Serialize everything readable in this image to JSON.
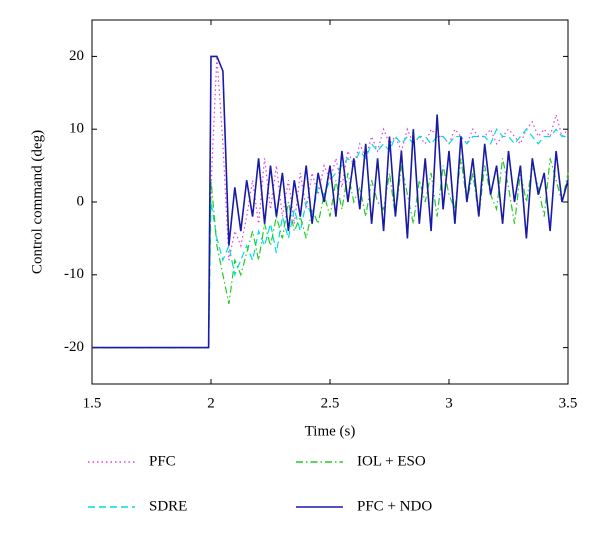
{
  "chart_data": {
    "type": "line",
    "xlabel": "Time (s)",
    "ylabel": "Control command (deg)",
    "xlim": [
      1.5,
      3.5
    ],
    "xticks": [
      1.5,
      2,
      2.5,
      3,
      3.5
    ],
    "ylim": [
      -25,
      25
    ],
    "yticks": [
      -20,
      -10,
      0,
      10,
      20
    ],
    "x": [
      1.5,
      1.99,
      2,
      2.025,
      2.05,
      2.075,
      2.1,
      2.125,
      2.15,
      2.175,
      2.2,
      2.225,
      2.25,
      2.275,
      2.3,
      2.325,
      2.35,
      2.375,
      2.4,
      2.425,
      2.45,
      2.475,
      2.5,
      2.525,
      2.55,
      2.575,
      2.6,
      2.625,
      2.65,
      2.675,
      2.7,
      2.725,
      2.75,
      2.775,
      2.8,
      2.825,
      2.85,
      2.875,
      2.9,
      2.925,
      2.95,
      2.975,
      3,
      3.025,
      3.05,
      3.075,
      3.1,
      3.125,
      3.15,
      3.175,
      3.2,
      3.225,
      3.25,
      3.275,
      3.3,
      3.325,
      3.35,
      3.375,
      3.4,
      3.425,
      3.45,
      3.475,
      3.5
    ],
    "series": [
      {
        "name": "PFC",
        "color": "#e040e0",
        "style": "dotted",
        "values": [
          -20,
          -20,
          2,
          20,
          8,
          -8,
          -4,
          -6,
          -2,
          3,
          -3,
          6,
          -1,
          5,
          -2,
          3,
          -3,
          4,
          -1,
          4,
          1,
          5,
          3,
          6,
          2,
          7,
          5,
          8,
          6,
          9,
          7,
          10,
          8,
          9,
          7,
          10,
          8,
          9,
          8,
          10,
          9,
          9,
          8,
          10,
          9,
          8,
          10,
          9,
          9,
          10,
          8,
          9,
          10,
          9,
          8,
          10,
          11,
          9,
          10,
          9,
          12,
          9,
          10
        ]
      },
      {
        "name": "SDRE",
        "color": "#00dede",
        "style": "dashed",
        "values": [
          -20,
          -20,
          0,
          -5,
          -8,
          -6,
          -10,
          -8,
          -6,
          -8,
          -4,
          -6,
          -3,
          -7,
          -2,
          -5,
          -1,
          -4,
          0,
          -2,
          2,
          1,
          3,
          4,
          5,
          6,
          5,
          7,
          6,
          8,
          7,
          8,
          7,
          9,
          8,
          9,
          8,
          9,
          9,
          8,
          9,
          9,
          8,
          9,
          9,
          8,
          9,
          9,
          9,
          8,
          10,
          9,
          9,
          8,
          9,
          10,
          9,
          8,
          9,
          9,
          10,
          9,
          9
        ]
      },
      {
        "name": "IOL + ESO",
        "color": "#22cc22",
        "style": "dashdot",
        "values": [
          -20,
          -20,
          3,
          -6,
          -10,
          -14,
          -8,
          -10,
          -7,
          -4,
          -8,
          -3,
          -6,
          -2,
          -5,
          0,
          -4,
          -2,
          -5,
          -1,
          -3,
          1,
          -2,
          3,
          -1,
          4,
          0,
          2,
          -2,
          3,
          0,
          -1,
          4,
          -2,
          5,
          1,
          -3,
          3,
          0,
          4,
          -2,
          5,
          1,
          -1,
          6,
          0,
          4,
          -2,
          5,
          1,
          -1,
          6,
          2,
          -3,
          4,
          0,
          5,
          2,
          -2,
          6,
          3,
          0,
          4
        ]
      },
      {
        "name": "PFC + NDO",
        "color": "#1a1aa8",
        "style": "solid",
        "values": [
          -20,
          -20,
          20,
          20,
          18,
          -6,
          2,
          -4,
          3,
          -2,
          6,
          -3,
          5,
          -2,
          4,
          -4,
          3,
          -2,
          5,
          -3,
          4,
          0,
          5,
          -2,
          7,
          0,
          6,
          -1,
          8,
          -3,
          6,
          -4,
          9,
          -2,
          7,
          -5,
          10,
          -3,
          6,
          -4,
          12,
          -1,
          7,
          -3,
          9,
          0,
          6,
          -2,
          8,
          1,
          5,
          -3,
          7,
          0,
          5,
          -5,
          6,
          1,
          4,
          -4,
          7,
          0,
          3
        ]
      }
    ]
  }
}
